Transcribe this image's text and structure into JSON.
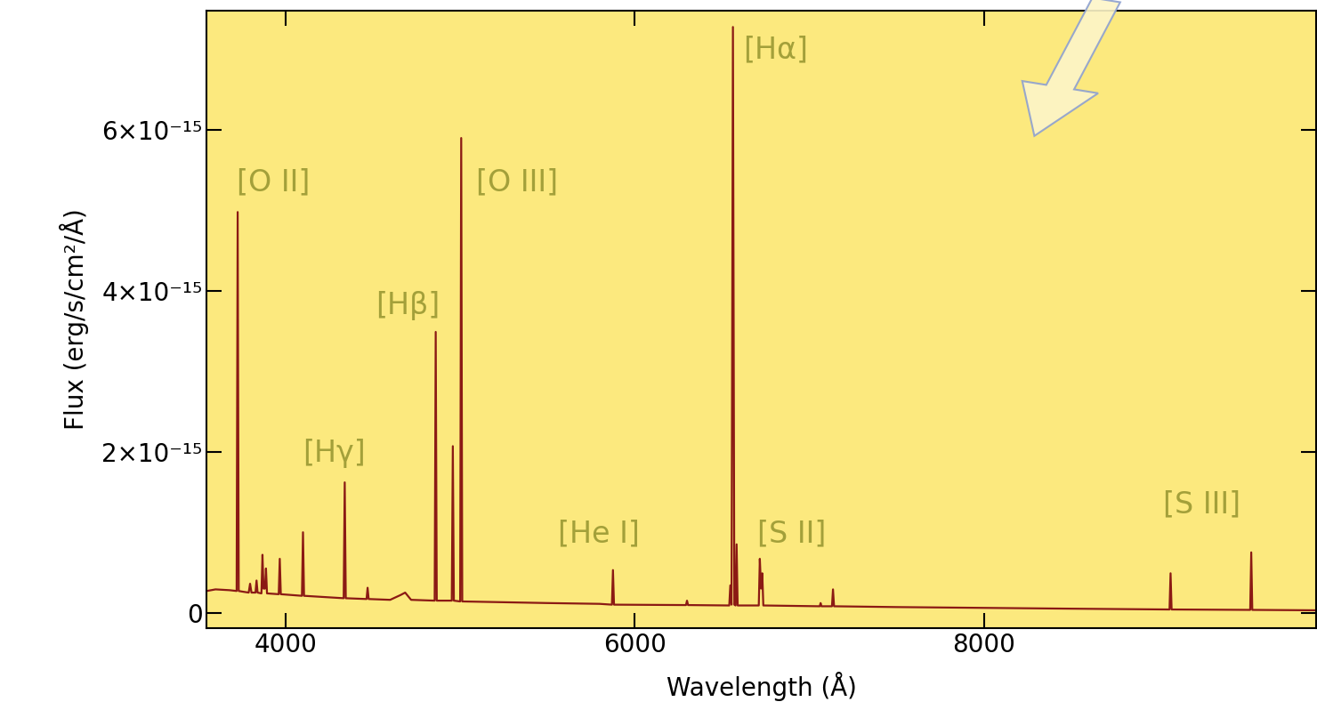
{
  "chart_data": {
    "type": "line",
    "x_label": "Wavelength (Å)",
    "y_label": "Flux (erg/s/cm²/Å)",
    "xlim": [
      3550,
      9900
    ],
    "xticks": [
      4000,
      6000,
      8000
    ],
    "ylim": [
      -1.9e-16,
      7.48e-15
    ],
    "yticks": [
      0,
      {
        "value": 2e-15,
        "label": "2×10⁻¹⁵"
      },
      {
        "value": 4e-15,
        "label": "4×10⁻¹⁵"
      },
      {
        "value": 6e-15,
        "label": "6×10⁻¹⁵"
      }
    ],
    "color": "#8b1a14",
    "x": [
      3550,
      3600,
      3680,
      3721,
      3727,
      3733,
      3760,
      3790,
      3798,
      3806,
      3829,
      3835,
      3841,
      3863,
      3869,
      3875,
      3883,
      3889,
      3895,
      3962,
      3968,
      3974,
      4095,
      4101,
      4107,
      4334,
      4340,
      4346,
      4465,
      4471,
      4477,
      4600,
      4660,
      4686,
      4720,
      4855,
      4861,
      4867,
      4953,
      4959,
      4965,
      5001,
      5007,
      5013,
      5500,
      5800,
      5870,
      5876,
      5882,
      6294,
      6300,
      6306,
      6542,
      6548,
      6555,
      6563,
      6571,
      6578,
      6584,
      6590,
      6711,
      6717,
      6724,
      6731,
      6737,
      7060,
      7065,
      7070,
      7130,
      7136,
      7142,
      7500,
      8000,
      8500,
      9063,
      9069,
      9075,
      9525,
      9531,
      9537,
      9900
    ],
    "values": [
      2.7e-16,
      2.9e-16,
      2.8e-16,
      2.7e-16,
      4.98e-15,
      2.7e-16,
      2.6e-16,
      2.5e-16,
      3.6e-16,
      2.5e-16,
      2.5e-16,
      4e-16,
      2.5e-16,
      2.4e-16,
      7.2e-16,
      3e-16,
      3e-16,
      5.5e-16,
      2.4e-16,
      2.3e-16,
      6.7e-16,
      2.3e-16,
      2.1e-16,
      1e-15,
      2.1e-16,
      1.8e-16,
      1.62e-15,
      1.8e-16,
      1.7e-16,
      3.1e-16,
      1.7e-16,
      1.6e-16,
      2.2e-16,
      2.5e-16,
      1.6e-16,
      1.5e-16,
      3.49e-15,
      1.5e-16,
      1.5e-16,
      2.07e-15,
      1.5e-16,
      1.4e-16,
      5.9e-15,
      1.4e-16,
      1.2e-16,
      1.1e-16,
      1e-16,
      5.3e-16,
      1e-16,
      9.5e-17,
      1.5e-16,
      9.5e-17,
      9e-17,
      3.4e-16,
      1e-16,
      7.28e-15,
      1e-16,
      9e-17,
      8.5e-16,
      9e-17,
      9e-17,
      6.7e-16,
      3e-16,
      4.9e-16,
      9e-17,
      8e-17,
      1.2e-16,
      8e-17,
      8e-17,
      2.9e-16,
      8e-17,
      7e-17,
      6e-17,
      5e-17,
      4e-17,
      4.9e-16,
      4e-17,
      3.5e-17,
      7.5e-16,
      3.5e-17,
      3e-17
    ],
    "annotations": [
      {
        "text": "[O II]",
        "x": 3720,
        "y": 5.35e-15
      },
      {
        "text": "[O III]",
        "x": 5091,
        "y": 5.35e-15
      },
      {
        "text": "[Hβ]",
        "x": 4517,
        "y": 3.82e-15
      },
      {
        "text": "[Hγ]",
        "x": 4101,
        "y": 1.98e-15
      },
      {
        "text": "[He I]",
        "x": 5563,
        "y": 9.8e-16
      },
      {
        "text": "[Hα]",
        "x": 6624,
        "y": 7e-15
      },
      {
        "text": "[S II]",
        "x": 6700,
        "y": 9.8e-16
      },
      {
        "text": "[S III]",
        "x": 9025,
        "y": 1.35e-15
      }
    ]
  }
}
